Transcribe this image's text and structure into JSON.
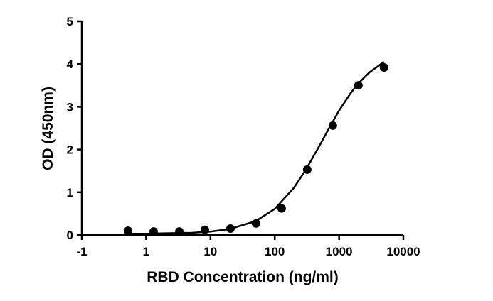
{
  "chart_data": {
    "type": "scatter",
    "xlabel": "RBD Concentration (ng/ml)",
    "ylabel": "OD (450nm)",
    "xscale": "log",
    "xlim": [
      0.1,
      10000
    ],
    "xticks": [
      {
        "value": 0.1,
        "label": "-1"
      },
      1,
      10,
      100,
      1000,
      10000
    ],
    "ylim": [
      0,
      5
    ],
    "yticks": [
      0,
      1,
      2,
      3,
      4,
      5
    ],
    "color": "#000000",
    "series": [
      {
        "x": [
          0.524,
          1.31,
          3.28,
          8.19,
          20.48,
          51.2,
          128,
          320,
          800,
          2000,
          5000
        ],
        "values": [
          0.1,
          0.08,
          0.08,
          0.12,
          0.15,
          0.27,
          0.62,
          1.53,
          2.56,
          3.5,
          3.92
        ]
      }
    ],
    "curve": {
      "x": [
        0.5,
        1,
        2,
        5,
        10,
        20,
        50,
        100,
        200,
        300,
        500,
        700,
        1000,
        1500,
        2000,
        3000,
        5000
      ],
      "values": [
        0.03,
        0.03,
        0.04,
        0.05,
        0.08,
        0.14,
        0.32,
        0.61,
        1.11,
        1.51,
        2.1,
        2.5,
        2.91,
        3.31,
        3.55,
        3.81,
        4.05
      ]
    }
  }
}
